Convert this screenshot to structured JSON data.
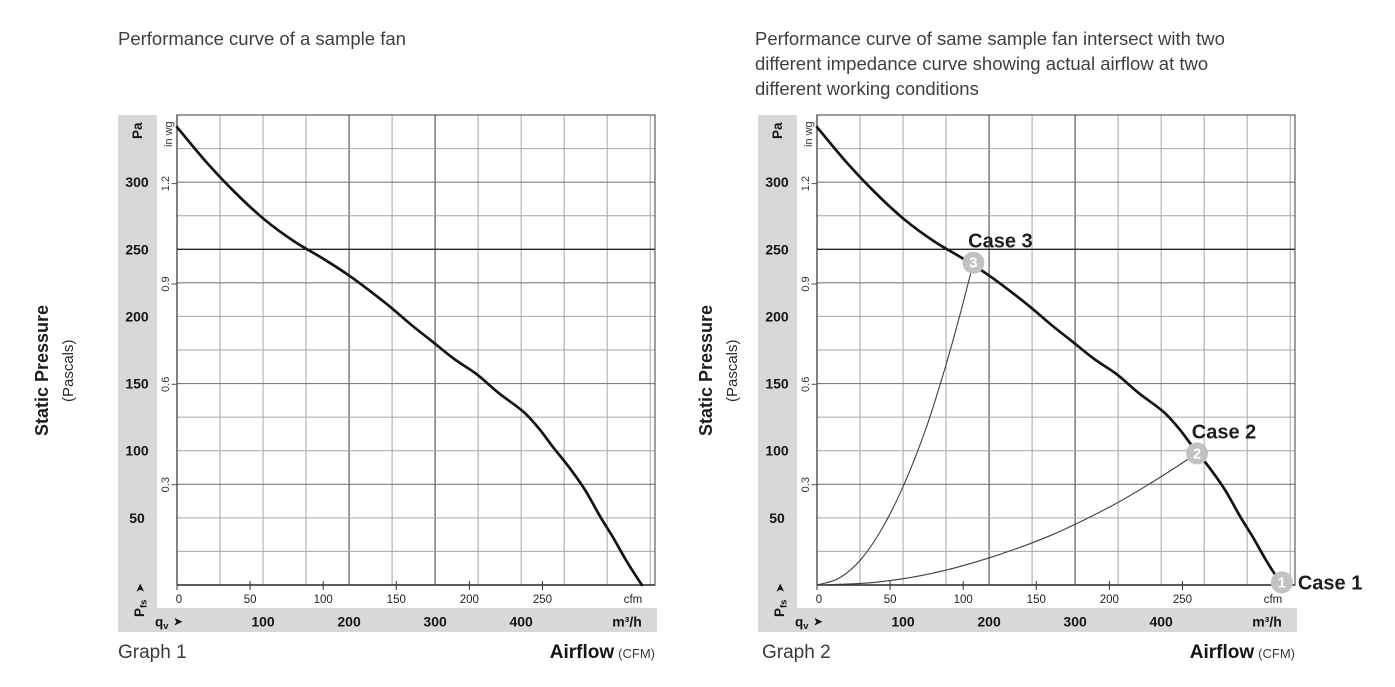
{
  "page": {
    "background": "#ffffff"
  },
  "colors": {
    "band": "#d8d8d8",
    "grid_minor": "#a6a6a6",
    "grid_medium": "#7f7f7f",
    "grid_medium_v": "#5a5a5a",
    "grid_major": "#262626",
    "fan_curve": "#151515",
    "impedance_curve": "#3f3f3f",
    "marker_fill": "#c2c2c2",
    "marker_text": "#ffffff",
    "tick_text": "#161616",
    "case_label_text": "#1f1f1f"
  },
  "charts": [
    {
      "name": "graph1",
      "title_lines": [
        "Performance curve of a sample fan"
      ],
      "graph_label": "Graph 1",
      "y_axis": {
        "label": "Static Pressure",
        "label_sub": "(Pascals)",
        "unit_primary": "Pa",
        "unit_secondary": "in wg",
        "origin_symbol": "P",
        "origin_symbol_sub": "fs",
        "origin_arrow": "➤"
      },
      "x_axis": {
        "label": "Airflow",
        "label_unit": "(CFM)",
        "unit_primary": "cfm",
        "unit_secondary": "m³/h",
        "origin_symbol": "q",
        "origin_symbol_sub": "v",
        "origin_arrow": "➤"
      },
      "chart_data": {
        "type": "line",
        "title": "Performance curve of a sample fan",
        "x_unit": "CFM",
        "x2_unit": "m³/h",
        "y_unit": "Pa",
        "y2_unit": "in wg",
        "xlim": [
          0,
          327
        ],
        "ylim": [
          0,
          350
        ],
        "grid": true,
        "x_ticks_cfm": [
          0,
          50,
          100,
          150,
          200,
          250
        ],
        "x_ticks_m3h": [
          100,
          200,
          300,
          400
        ],
        "y_ticks_pa": [
          300,
          250,
          200,
          150,
          100,
          50
        ],
        "y_ticks_inwg": [
          1.2,
          0.9,
          0.6,
          0.3
        ],
        "series": [
          {
            "name": "fan performance curve",
            "points": [
              [
                0,
                341
              ],
              [
                20,
                315
              ],
              [
                40,
                292
              ],
              [
                60,
                272
              ],
              [
                80,
                256
              ],
              [
                100,
                243
              ],
              [
                117,
                231
              ],
              [
                132,
                219
              ],
              [
                146,
                207
              ],
              [
                160,
                194
              ],
              [
                175,
                181
              ],
              [
                190,
                168
              ],
              [
                205,
                157
              ],
              [
                220,
                143
              ],
              [
                237,
                129
              ],
              [
                248,
                116
              ],
              [
                257,
                103
              ],
              [
                268,
                88
              ],
              [
                279,
                71
              ],
              [
                290,
                50
              ],
              [
                298,
                36
              ],
              [
                308,
                17
              ],
              [
                318,
                0
              ]
            ]
          }
        ]
      }
    },
    {
      "name": "graph2",
      "title_lines": [
        "Performance curve of same sample fan intersect with two",
        "different impedance curve showing actual airflow at two",
        "different working conditions"
      ],
      "graph_label": "Graph 2",
      "y_axis": {
        "label": "Static Pressure",
        "label_sub": "(Pascals)",
        "unit_primary": "Pa",
        "unit_secondary": "in wg",
        "origin_symbol": "P",
        "origin_symbol_sub": "fs",
        "origin_arrow": "➤"
      },
      "x_axis": {
        "label": "Airflow",
        "label_unit": "(CFM)",
        "unit_primary": "cfm",
        "unit_secondary": "m³/h",
        "origin_symbol": "q",
        "origin_symbol_sub": "v",
        "origin_arrow": "➤"
      },
      "chart_data": {
        "type": "line",
        "title": "Performance curve of same sample fan intersect with two different impedance curve showing actual airflow at two different working conditions",
        "x_unit": "CFM",
        "x2_unit": "m³/h",
        "y_unit": "Pa",
        "y2_unit": "in wg",
        "xlim": [
          0,
          327
        ],
        "ylim": [
          0,
          350
        ],
        "grid": true,
        "x_ticks_cfm": [
          0,
          50,
          100,
          150,
          200,
          250
        ],
        "x_ticks_m3h": [
          100,
          200,
          300,
          400
        ],
        "y_ticks_pa": [
          300,
          250,
          200,
          150,
          100,
          50
        ],
        "y_ticks_inwg": [
          1.2,
          0.9,
          0.6,
          0.3
        ],
        "series": [
          {
            "name": "fan performance curve",
            "points": [
              [
                0,
                341
              ],
              [
                20,
                315
              ],
              [
                40,
                292
              ],
              [
                60,
                272
              ],
              [
                80,
                256
              ],
              [
                100,
                243
              ],
              [
                117,
                231
              ],
              [
                132,
                219
              ],
              [
                146,
                207
              ],
              [
                160,
                194
              ],
              [
                175,
                181
              ],
              [
                190,
                168
              ],
              [
                205,
                157
              ],
              [
                220,
                143
              ],
              [
                237,
                129
              ],
              [
                248,
                116
              ],
              [
                257,
                103
              ],
              [
                268,
                88
              ],
              [
                279,
                71
              ],
              [
                290,
                50
              ],
              [
                298,
                36
              ],
              [
                308,
                17
              ],
              [
                318,
                0
              ]
            ]
          },
          {
            "name": "impedance curve high resistance (Case 3)",
            "points": [
              [
                0,
                0
              ],
              [
                15,
                5
              ],
              [
                30,
                19
              ],
              [
                45,
                43
              ],
              [
                60,
                76
              ],
              [
                75,
                118
              ],
              [
                88,
                163
              ],
              [
                98,
                202
              ],
              [
                107,
                240
              ]
            ]
          },
          {
            "name": "impedance curve low resistance (Case 2)",
            "points": [
              [
                0,
                0
              ],
              [
                40,
                2
              ],
              [
                80,
                9
              ],
              [
                120,
                21
              ],
              [
                160,
                37
              ],
              [
                200,
                58
              ],
              [
                230,
                77
              ],
              [
                260,
                98
              ]
            ]
          }
        ],
        "cases": [
          {
            "marker": "3",
            "label": "Case 3",
            "cfm": 107,
            "pa": 240,
            "label_position": "above"
          },
          {
            "marker": "2",
            "label": "Case 2",
            "cfm": 260,
            "pa": 98,
            "label_position": "above"
          },
          {
            "marker": "1",
            "label": "Case 1",
            "cfm": 318,
            "pa": 2,
            "label_position": "right"
          }
        ]
      }
    }
  ]
}
